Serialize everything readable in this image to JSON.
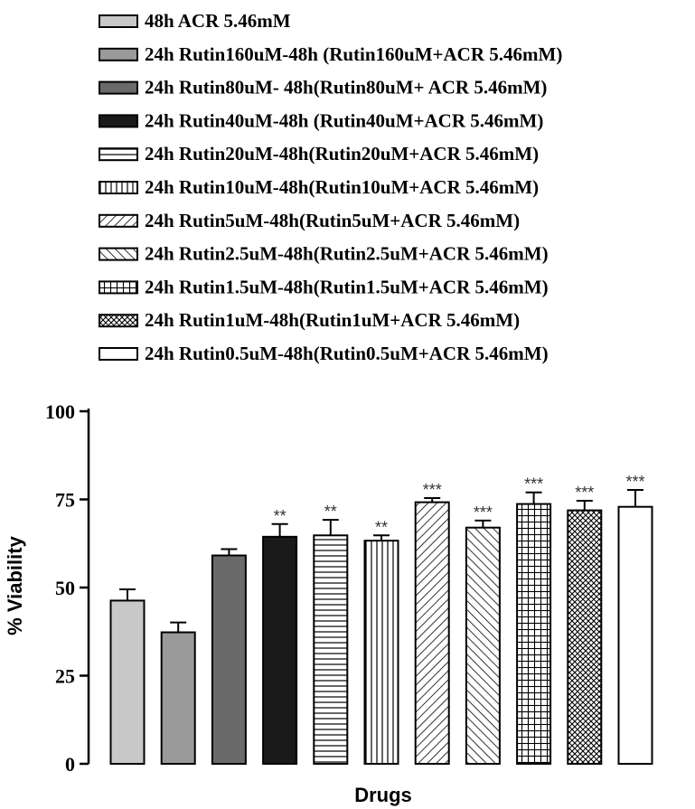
{
  "chart_data": {
    "type": "bar",
    "title": "",
    "xlabel": "Drugs",
    "ylabel": "% Viability",
    "ylim": [
      0,
      100
    ],
    "yticks": [
      "0",
      "25",
      "50",
      "75",
      "100"
    ],
    "grid": false,
    "legend_position": "top",
    "series": [
      {
        "name": "48h ACR 5.46mM",
        "value": 46.3,
        "error": 3.2,
        "significance": "",
        "pattern": "solid",
        "fill": "#c8c8c8"
      },
      {
        "name": "24h Rutin160uM-48h (Rutin160uM+ACR 5.46mM)",
        "value": 37.3,
        "error": 2.8,
        "significance": "",
        "pattern": "solid",
        "fill": "#9a9a9a"
      },
      {
        "name": "24h Rutin80uM- 48h(Rutin80uM+ ACR 5.46mM)",
        "value": 59.1,
        "error": 1.8,
        "significance": "",
        "pattern": "solid",
        "fill": "#6a6a6a"
      },
      {
        "name": "24h Rutin40uM-48h (Rutin40uM+ACR 5.46mM)",
        "value": 64.4,
        "error": 3.6,
        "significance": "**",
        "pattern": "solid",
        "fill": "#1a1a1a"
      },
      {
        "name": "24h Rutin20uM-48h(Rutin20uM+ACR 5.46mM)",
        "value": 64.8,
        "error": 4.4,
        "significance": "**",
        "pattern": "hlines",
        "fill": "#ffffff"
      },
      {
        "name": "24h Rutin10uM-48h(Rutin10uM+ACR 5.46mM)",
        "value": 63.3,
        "error": 1.5,
        "significance": "**",
        "pattern": "vlines",
        "fill": "#ffffff"
      },
      {
        "name": "24h Rutin5uM-48h(Rutin5uM+ACR 5.46mM)",
        "value": 74.2,
        "error": 1.2,
        "significance": "***",
        "pattern": "diag-back",
        "fill": "#ffffff"
      },
      {
        "name": "24h Rutin2.5uM-48h(Rutin2.5uM+ACR 5.46mM)",
        "value": 67.0,
        "error": 2.0,
        "significance": "***",
        "pattern": "diag-fwd",
        "fill": "#ffffff"
      },
      {
        "name": "24h Rutin1.5uM-48h(Rutin1.5uM+ACR 5.46mM)",
        "value": 73.7,
        "error": 3.3,
        "significance": "***",
        "pattern": "grid",
        "fill": "#ffffff"
      },
      {
        "name": "24h Rutin1uM-48h(Rutin1uM+ACR 5.46mM)",
        "value": 71.9,
        "error": 2.7,
        "significance": "***",
        "pattern": "crosshatch",
        "fill": "#ffffff"
      },
      {
        "name": "24h Rutin0.5uM-48h(Rutin0.5uM+ACR 5.46mM)",
        "value": 72.9,
        "error": 4.8,
        "significance": "***",
        "pattern": "solid",
        "fill": "#ffffff"
      }
    ]
  }
}
